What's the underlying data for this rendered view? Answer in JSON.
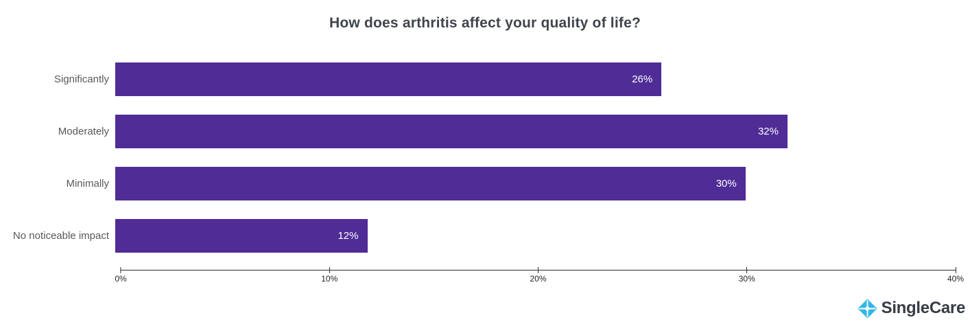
{
  "title": "How does arthritis affect your quality of life?",
  "chart_data": {
    "type": "bar",
    "orientation": "horizontal",
    "title": "How does arthritis affect your quality of life?",
    "categories": [
      "Significantly",
      "Moderately",
      "Minimally",
      "No noticeable impact"
    ],
    "values": [
      26,
      32,
      30,
      12
    ],
    "value_labels": [
      "26%",
      "32%",
      "30%",
      "12%"
    ],
    "xlabel": "",
    "ylabel": "",
    "xlim": [
      0,
      40
    ],
    "x_ticks": [
      "0%",
      "10%",
      "20%",
      "30%",
      "40%"
    ],
    "bar_color": "#4F2C96",
    "value_label_color": "#FFFFFF",
    "axis_color": "#2E2E2E",
    "grid": false,
    "legend": false
  },
  "branding": {
    "logo_text": "SingleCare",
    "logo_text_color": "#373C45",
    "logo_icon": "singlecare-sparkle-icon",
    "logo_icon_color": "#35B6E9"
  }
}
